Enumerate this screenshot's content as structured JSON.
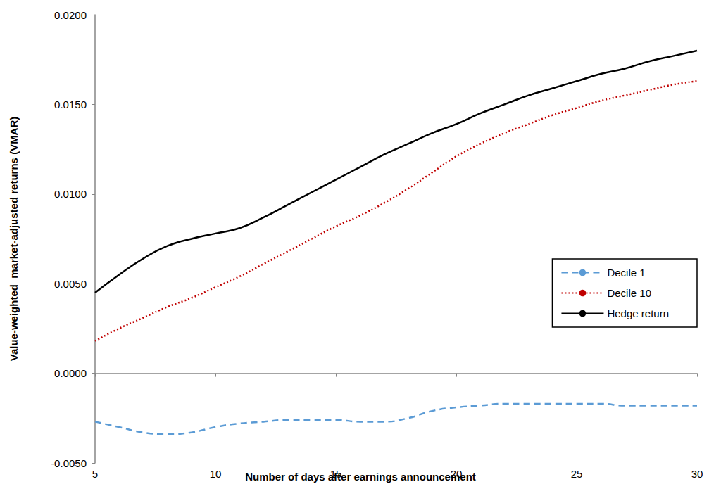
{
  "chart_data": {
    "type": "line",
    "x_label": "Number of days after earnings announcement",
    "y_label": "Value-weighted  market-adjusted returns (VMAR)",
    "x": [
      5,
      6,
      7,
      8,
      9,
      10,
      11,
      12,
      13,
      14,
      15,
      16,
      17,
      18,
      19,
      20,
      21,
      22,
      23,
      24,
      25,
      26,
      27,
      28,
      29,
      30
    ],
    "series": [
      {
        "name": "Decile 1",
        "color": "#5b9bd5",
        "line_style": "dashed",
        "values": [
          -0.0027,
          -0.003,
          -0.0033,
          -0.0034,
          -0.0033,
          -0.003,
          -0.0028,
          -0.0027,
          -0.0026,
          -0.0026,
          -0.0026,
          -0.0027,
          -0.0027,
          -0.0025,
          -0.0021,
          -0.0019,
          -0.0018,
          -0.0017,
          -0.0017,
          -0.0017,
          -0.0017,
          -0.0017,
          -0.0018,
          -0.0018,
          -0.0018,
          -0.0018
        ]
      },
      {
        "name": "Decile 10",
        "color": "#c00000",
        "line_style": "dotted",
        "values": [
          0.0018,
          0.0025,
          0.0031,
          0.0037,
          0.0042,
          0.0048,
          0.0054,
          0.0061,
          0.0068,
          0.0075,
          0.0082,
          0.0088,
          0.0095,
          0.0103,
          0.0112,
          0.0121,
          0.0128,
          0.0134,
          0.0139,
          0.0144,
          0.0148,
          0.0152,
          0.0155,
          0.0158,
          0.0161,
          0.0163
        ]
      },
      {
        "name": "Hedge return",
        "color": "#000000",
        "line_style": "solid",
        "values": [
          0.0045,
          0.0055,
          0.0064,
          0.0071,
          0.0075,
          0.0078,
          0.0081,
          0.0087,
          0.0094,
          0.0101,
          0.0108,
          0.0115,
          0.0122,
          0.0128,
          0.0134,
          0.0139,
          0.0145,
          0.015,
          0.0155,
          0.0159,
          0.0163,
          0.0167,
          0.017,
          0.0174,
          0.0177,
          0.018
        ]
      }
    ],
    "xlim": [
      5,
      30
    ],
    "xticks": [
      5,
      10,
      15,
      20,
      25,
      30
    ],
    "ylim": [
      -0.005,
      0.02
    ],
    "yticks": [
      {
        "value": -0.005,
        "label": "-0.0050"
      },
      {
        "value": 0,
        "label": "0.0000"
      },
      {
        "value": 0.005,
        "label": "0.0050"
      },
      {
        "value": 0.01,
        "label": "0.0100"
      },
      {
        "value": 0.015,
        "label": "0.0150"
      },
      {
        "value": 0.02,
        "label": "0.0200"
      }
    ],
    "grid": false,
    "legend": "right"
  }
}
